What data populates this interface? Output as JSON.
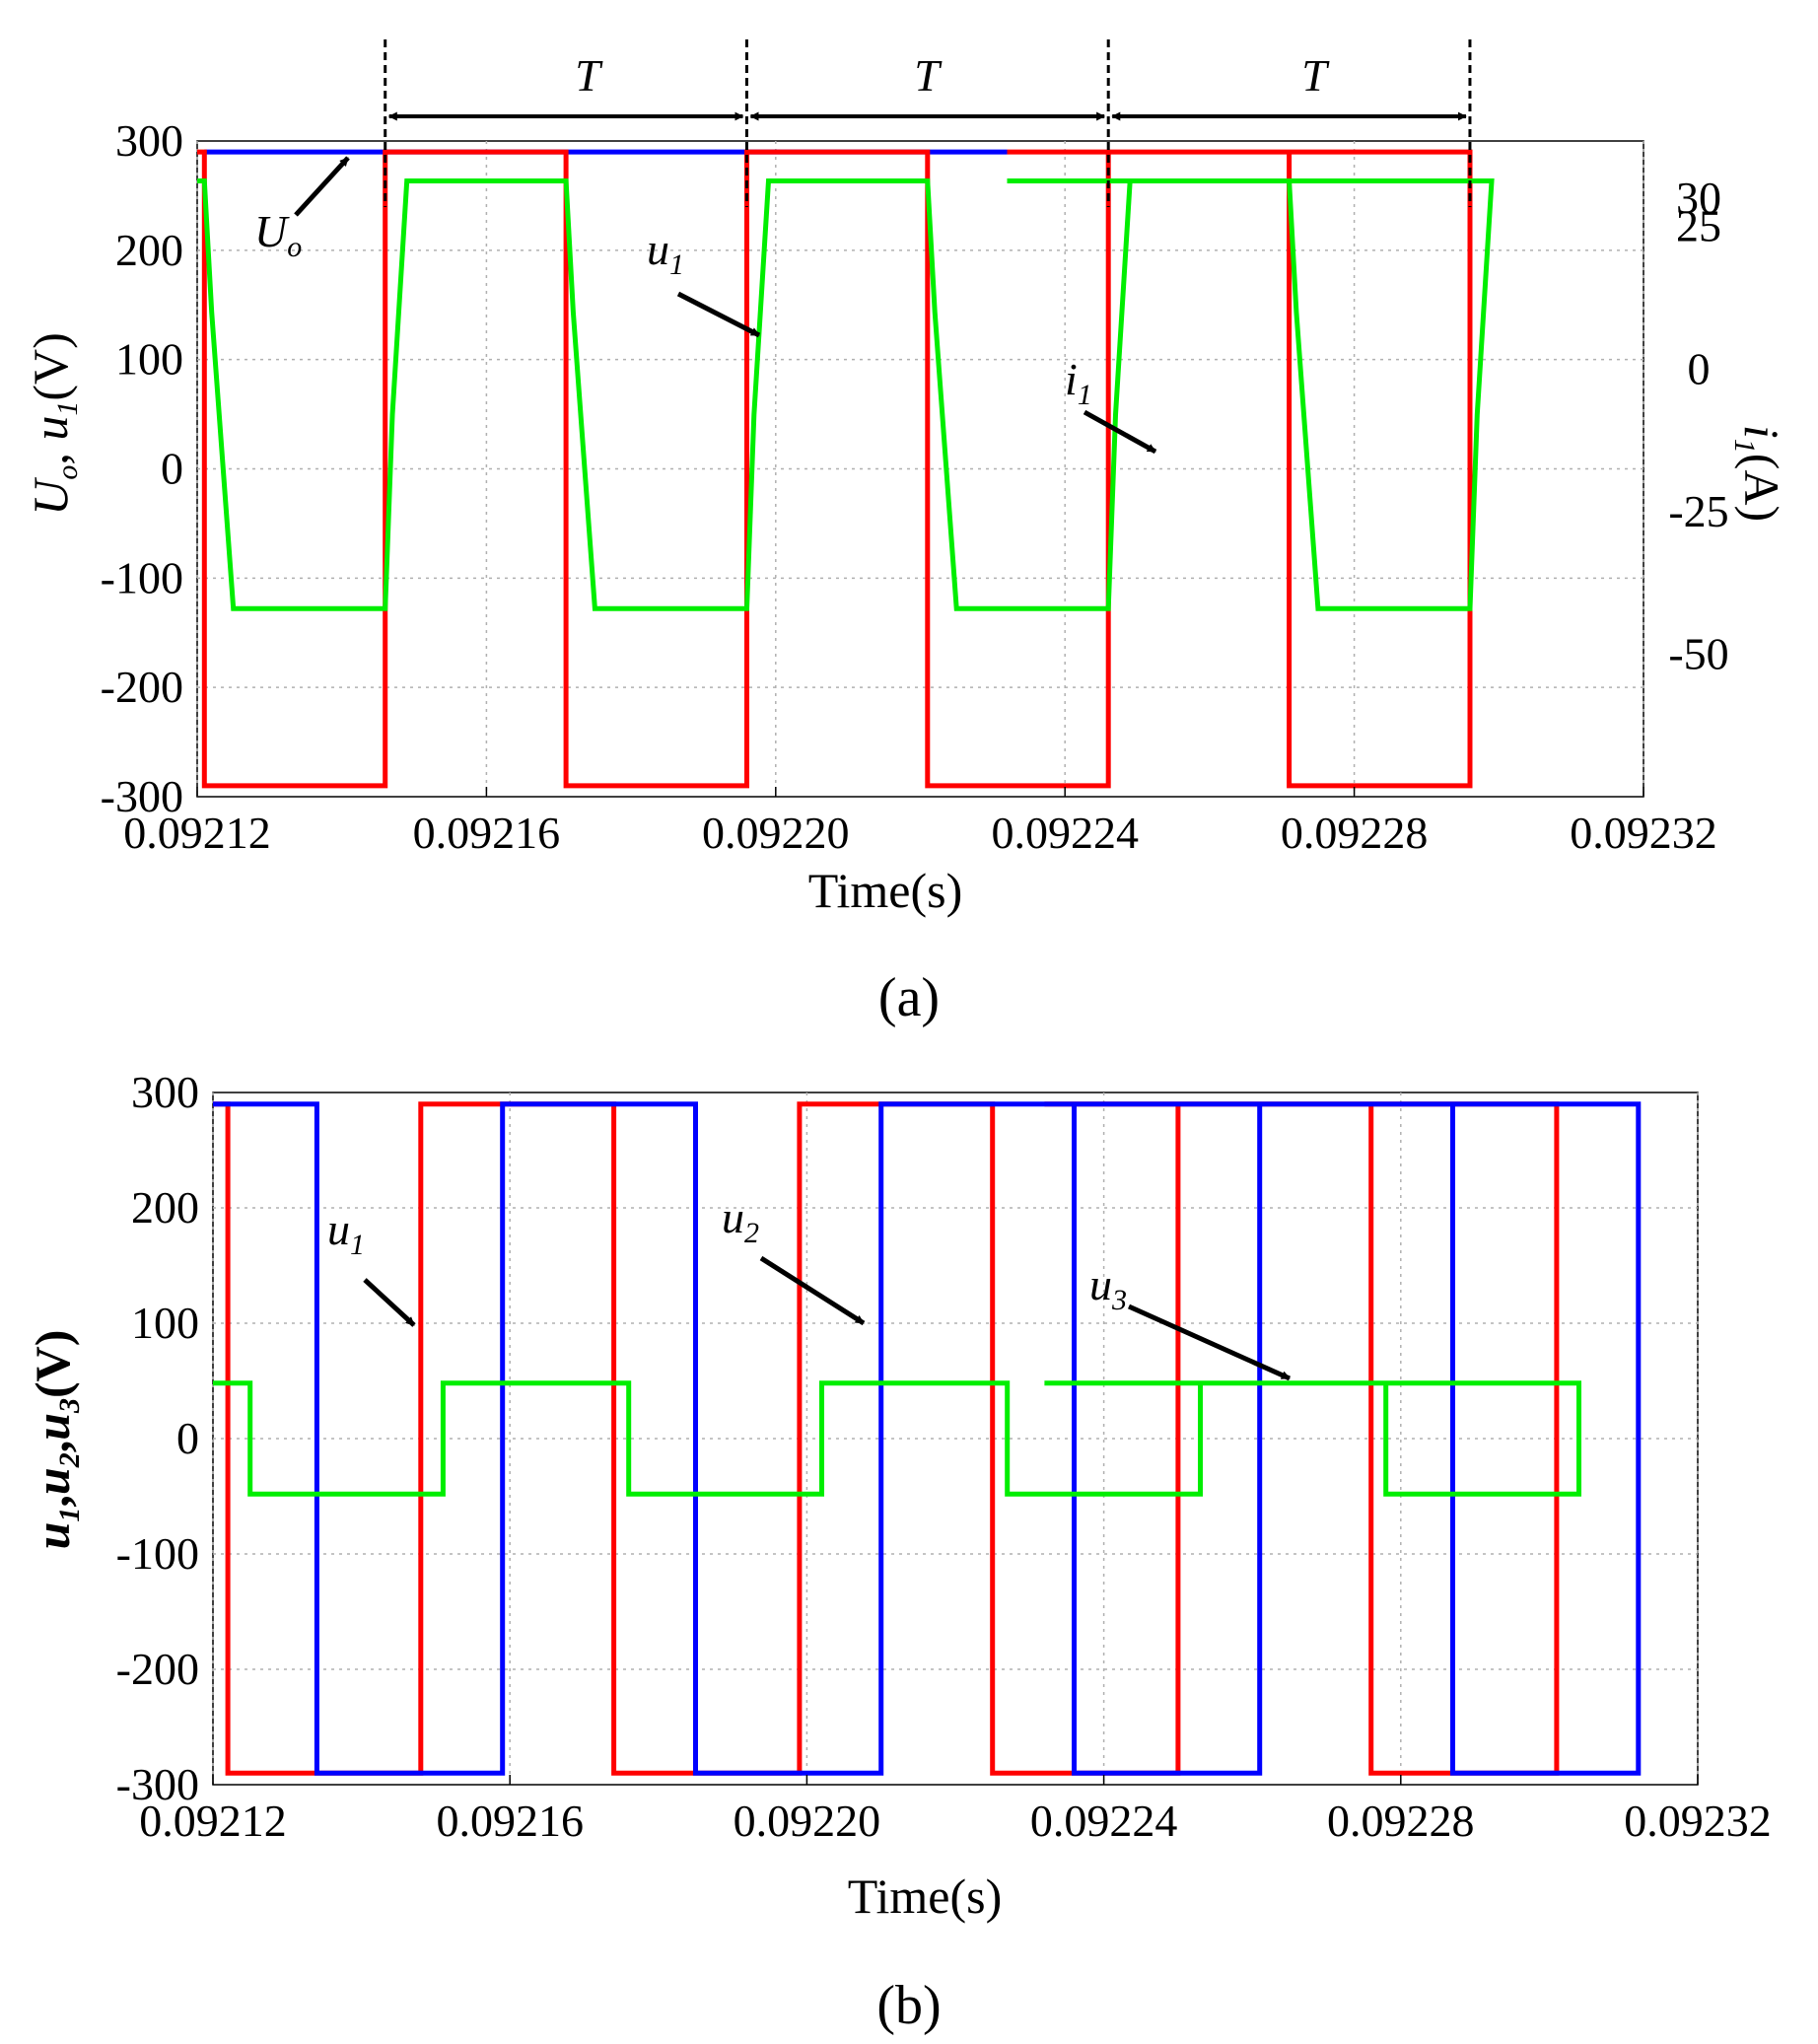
{
  "figure": {
    "panel_a_label": "(a)",
    "panel_b_label": "(b)",
    "colors": {
      "u1": "#ff0000",
      "u2": "#0000ff",
      "Uo": "#0000ff",
      "i1": "#00ee00",
      "u3": "#00ee00",
      "grid": "#b0b0b0"
    }
  },
  "chart_data": [
    {
      "id": "a",
      "type": "line",
      "xlabel": "Time(s)",
      "ylabel_left": {
        "parts": [
          "U",
          "o",
          ", ",
          "u",
          "1",
          "(V)"
        ]
      },
      "ylabel_right": {
        "parts": [
          "i",
          "1",
          "(A)"
        ]
      },
      "xlim": [
        0.09212,
        0.09232
      ],
      "ylim_left": [
        -300,
        300
      ],
      "ylim_right": [
        -75,
        40
      ],
      "x_ticks": [
        {
          "value": 0.09212,
          "label": "0.09212"
        },
        {
          "value": 0.09216,
          "label": "0.09216"
        },
        {
          "value": 0.0922,
          "label": "0.09220"
        },
        {
          "value": 0.09224,
          "label": "0.09224"
        },
        {
          "value": 0.09228,
          "label": "0.09228"
        },
        {
          "value": 0.09232,
          "label": "0.09232"
        }
      ],
      "y_ticks_left": [
        {
          "value": 300,
          "label": "300"
        },
        {
          "value": 200,
          "label": "200"
        },
        {
          "value": 100,
          "label": "100"
        },
        {
          "value": 0,
          "label": "0"
        },
        {
          "value": -100,
          "label": "-100"
        },
        {
          "value": -200,
          "label": "-200"
        },
        {
          "value": -300,
          "label": "-300"
        }
      ],
      "y_ticks_right": [
        {
          "value": 30,
          "label": "30"
        },
        {
          "value": 25,
          "label": "25"
        },
        {
          "value": 0,
          "label": "0"
        },
        {
          "value": -25,
          "label": "-25"
        },
        {
          "value": -50,
          "label": "-50"
        }
      ],
      "period_marks": [
        0.092146,
        0.092196,
        0.092246,
        0.092296
      ],
      "period_label": "T",
      "series": [
        {
          "name": "Uo",
          "axis": "left",
          "color": "#0000ff",
          "width": 5,
          "points": [
            [
              0.092121,
              290
            ],
            [
              0.092232,
              290
            ]
          ]
        },
        {
          "name": "u1",
          "axis": "left",
          "color": "#ff0000",
          "width": 5,
          "points": [
            [
              0.09212,
              290
            ],
            [
              0.092121,
              290
            ],
            [
              0.092121,
              -290
            ],
            [
              0.092146,
              -290
            ],
            [
              0.092146,
              290
            ],
            [
              0.092171,
              290
            ],
            [
              0.092171,
              -290
            ],
            [
              0.092196,
              -290
            ],
            [
              0.092196,
              290
            ],
            [
              0.092221,
              290
            ],
            [
              0.092221,
              -290
            ],
            [
              0.092246,
              -290
            ],
            [
              0.092246,
              290
            ],
            [
              0.092271,
              290
            ],
            [
              0.092271,
              -290
            ],
            [
              0.092296,
              -290
            ],
            [
              0.092296,
              290
            ],
            [
              0.092232,
              290
            ]
          ]
        },
        {
          "name": "i1",
          "axis": "right",
          "color": "#00ee00",
          "width": 5,
          "points": [
            [
              0.09212,
              33
            ],
            [
              0.092121,
              33
            ],
            [
              0.092122,
              10
            ],
            [
              0.092125,
              -42
            ],
            [
              0.092146,
              -42
            ],
            [
              0.092147,
              -8
            ],
            [
              0.092149,
              33
            ],
            [
              0.092171,
              33
            ],
            [
              0.092172,
              10
            ],
            [
              0.092175,
              -42
            ],
            [
              0.092196,
              -42
            ],
            [
              0.092197,
              -8
            ],
            [
              0.092199,
              33
            ],
            [
              0.092221,
              33
            ],
            [
              0.092222,
              10
            ],
            [
              0.092225,
              -42
            ],
            [
              0.092246,
              -42
            ],
            [
              0.092247,
              -8
            ],
            [
              0.092249,
              33
            ],
            [
              0.092271,
              33
            ],
            [
              0.092272,
              10
            ],
            [
              0.092275,
              -42
            ],
            [
              0.092296,
              -42
            ],
            [
              0.092297,
              -8
            ],
            [
              0.092299,
              33
            ],
            [
              0.092232,
              33
            ]
          ]
        }
      ],
      "annotations": [
        {
          "text": "U",
          "sub": "o",
          "target": "Uo"
        },
        {
          "text": "u",
          "sub": "1",
          "target": "u1"
        },
        {
          "text": "i",
          "sub": "1",
          "target": "i1"
        }
      ]
    },
    {
      "id": "b",
      "type": "line",
      "xlabel": "Time(s)",
      "ylabel_left": {
        "parts": [
          "u",
          "1",
          ",",
          "u",
          "2",
          ",",
          "u",
          "3",
          "(V)"
        ]
      },
      "xlim": [
        0.09212,
        0.09232
      ],
      "ylim_left": [
        -300,
        300
      ],
      "x_ticks": [
        {
          "value": 0.09212,
          "label": "0.09212"
        },
        {
          "value": 0.09216,
          "label": "0.09216"
        },
        {
          "value": 0.0922,
          "label": "0.09220"
        },
        {
          "value": 0.09224,
          "label": "0.09224"
        },
        {
          "value": 0.09228,
          "label": "0.09228"
        },
        {
          "value": 0.09232,
          "label": "0.09232"
        }
      ],
      "y_ticks_left": [
        {
          "value": 300,
          "label": "300"
        },
        {
          "value": 200,
          "label": "200"
        },
        {
          "value": 100,
          "label": "100"
        },
        {
          "value": 0,
          "label": "0"
        },
        {
          "value": -100,
          "label": "-100"
        },
        {
          "value": -200,
          "label": "-200"
        },
        {
          "value": -300,
          "label": "-300"
        }
      ],
      "series": [
        {
          "name": "u1",
          "axis": "left",
          "color": "#ff0000",
          "width": 5,
          "points": [
            [
              0.09212,
              290
            ],
            [
              0.092122,
              290
            ],
            [
              0.092122,
              -290
            ],
            [
              0.092148,
              -290
            ],
            [
              0.092148,
              290
            ],
            [
              0.092174,
              290
            ],
            [
              0.092174,
              -290
            ],
            [
              0.092199,
              -290
            ],
            [
              0.092199,
              290
            ],
            [
              0.092225,
              290
            ],
            [
              0.092225,
              -290
            ],
            [
              0.09225,
              -290
            ],
            [
              0.09225,
              290
            ],
            [
              0.092276,
              290
            ],
            [
              0.092276,
              -290
            ],
            [
              0.092301,
              -290
            ],
            [
              0.092301,
              290
            ],
            [
              0.092232,
              290
            ]
          ]
        },
        {
          "name": "u2",
          "axis": "left",
          "color": "#0000ff",
          "width": 5,
          "points": [
            [
              0.09212,
              290
            ],
            [
              0.092134,
              290
            ],
            [
              0.092134,
              -290
            ],
            [
              0.092159,
              -290
            ],
            [
              0.092159,
              290
            ],
            [
              0.092185,
              290
            ],
            [
              0.092185,
              -290
            ],
            [
              0.09221,
              -290
            ],
            [
              0.09221,
              290
            ],
            [
              0.092236,
              290
            ],
            [
              0.092236,
              -290
            ],
            [
              0.092261,
              -290
            ],
            [
              0.092261,
              290
            ],
            [
              0.092287,
              290
            ],
            [
              0.092287,
              -290
            ],
            [
              0.092312,
              -290
            ],
            [
              0.092312,
              290
            ],
            [
              0.092232,
              290
            ]
          ]
        },
        {
          "name": "u3",
          "axis": "left",
          "color": "#00ee00",
          "width": 5,
          "points": [
            [
              0.09212,
              48
            ],
            [
              0.092125,
              48
            ],
            [
              0.092125,
              -48
            ],
            [
              0.092151,
              -48
            ],
            [
              0.092151,
              48
            ],
            [
              0.092176,
              48
            ],
            [
              0.092176,
              -48
            ],
            [
              0.092202,
              -48
            ],
            [
              0.092202,
              48
            ],
            [
              0.092227,
              48
            ],
            [
              0.092227,
              -48
            ],
            [
              0.092253,
              -48
            ],
            [
              0.092253,
              48
            ],
            [
              0.092278,
              48
            ],
            [
              0.092278,
              -48
            ],
            [
              0.092304,
              -48
            ],
            [
              0.092304,
              48
            ],
            [
              0.092232,
              48
            ]
          ]
        }
      ],
      "annotations": [
        {
          "text": "u",
          "sub": "1",
          "target": "u1"
        },
        {
          "text": "u",
          "sub": "2",
          "target": "u2"
        },
        {
          "text": "u",
          "sub": "3",
          "target": "u3"
        }
      ]
    }
  ]
}
